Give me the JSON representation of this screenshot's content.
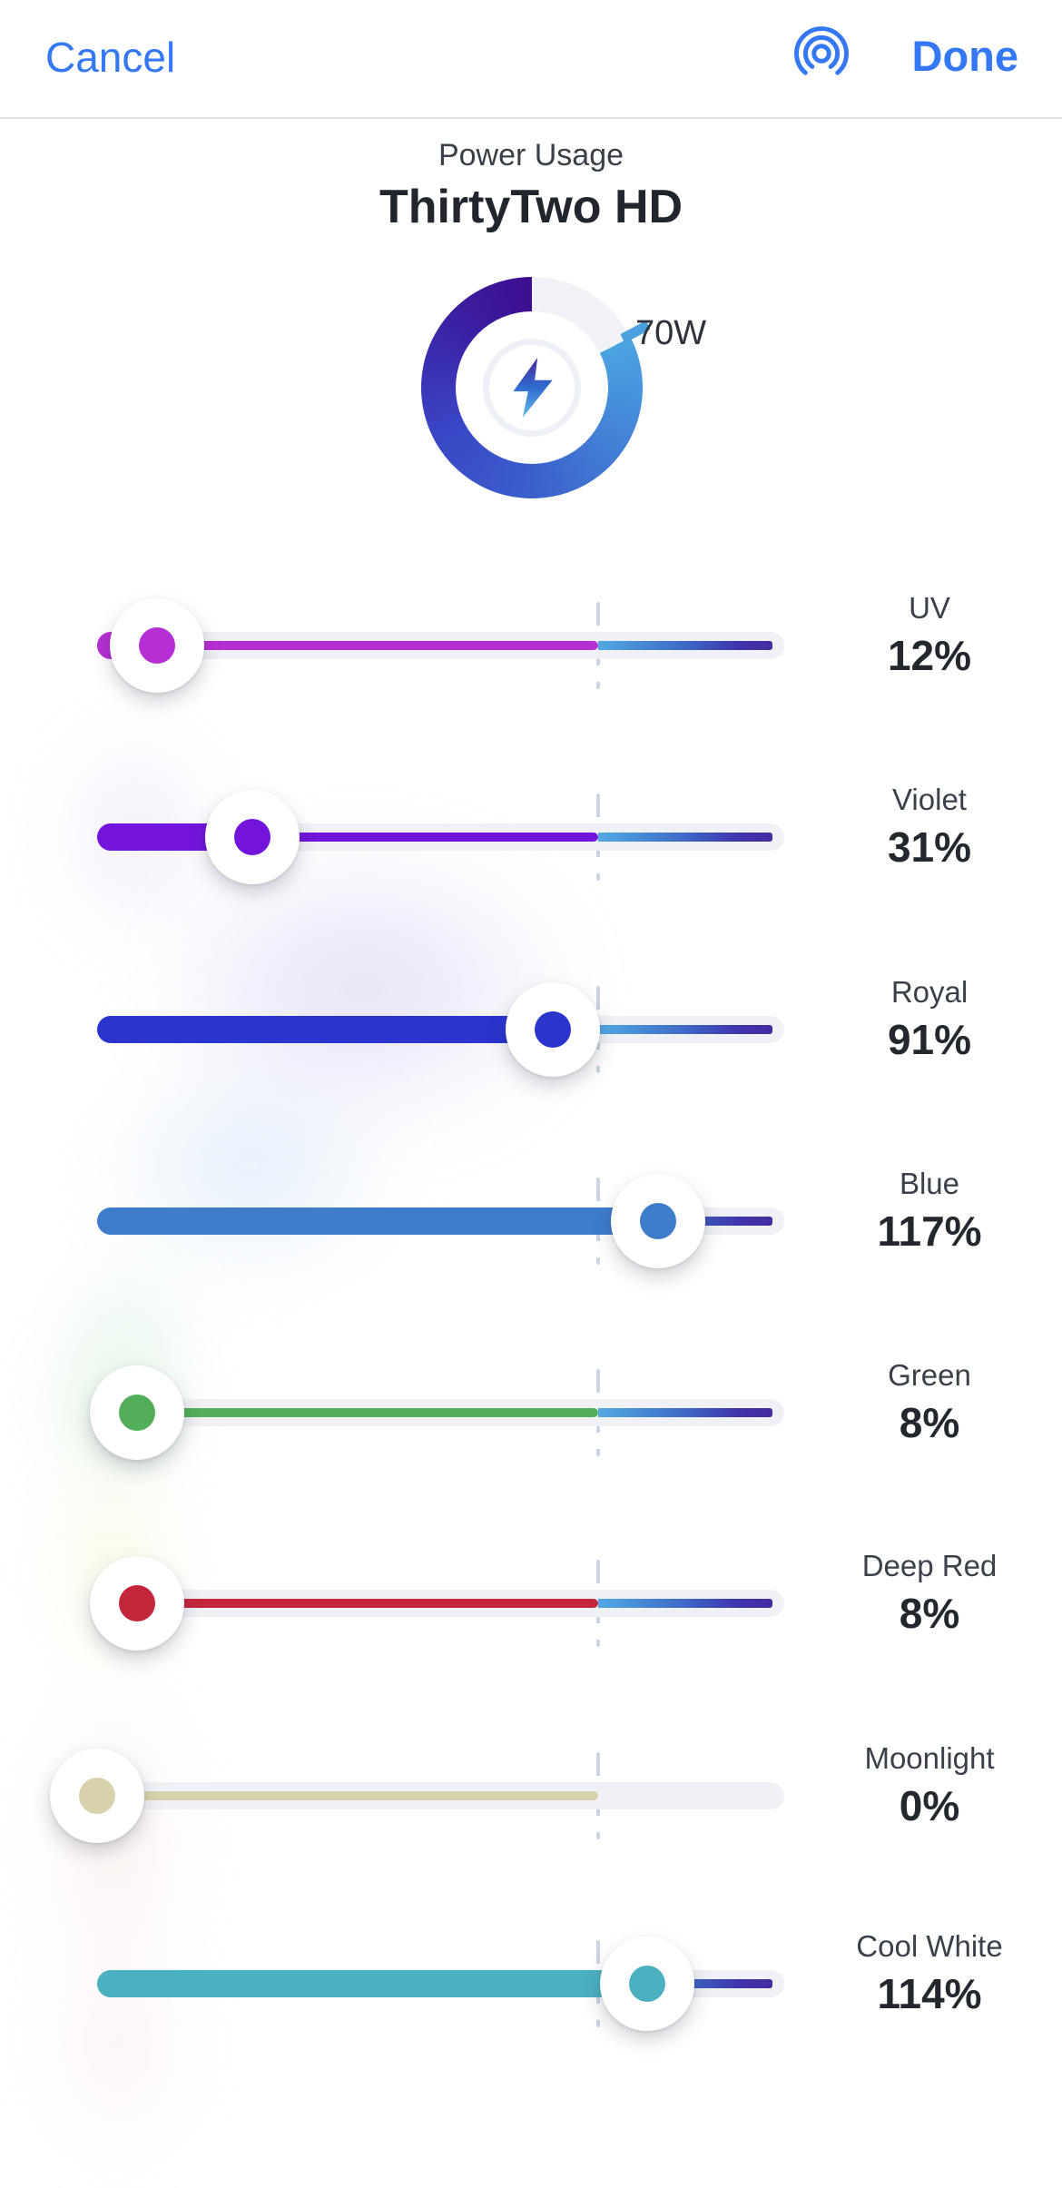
{
  "header": {
    "cancel_label": "Cancel",
    "done_label": "Done",
    "icon": "ripple-icon",
    "accent_color": "#3478F6"
  },
  "power": {
    "section_label": "Power Usage",
    "device_name": "ThirtyTwo HD",
    "wattage_label": "70W",
    "fill_percent": 82.5,
    "ring_track_color": "#F0F2F7",
    "ring_gradient": [
      "#4BA4E2",
      "#4484D7",
      "#3A5FCB",
      "#3945C5",
      "#3B1FA2",
      "#3D0D90"
    ]
  },
  "sliders": {
    "hundred_mark_color": "#CBD5E3",
    "track_color": "#EFF1F6",
    "overdrive_gradient": [
      "#52A9E2",
      "#3E6CC7",
      "#3F35AC",
      "#452B9E"
    ],
    "max_percent": 150,
    "channels": [
      {
        "name": "UV",
        "value": 12,
        "percent_label": "12%",
        "color": "#B62FD4",
        "overdrive": true
      },
      {
        "name": "Violet",
        "value": 31,
        "percent_label": "31%",
        "color": "#7314DC",
        "overdrive": true
      },
      {
        "name": "Royal",
        "value": 91,
        "percent_label": "91%",
        "color": "#2B35CE",
        "overdrive": true
      },
      {
        "name": "Blue",
        "value": 117,
        "percent_label": "117%",
        "color": "#3D7CCB",
        "overdrive": true
      },
      {
        "name": "Green",
        "value": 8,
        "percent_label": "8%",
        "color": "#52AE58",
        "overdrive": true
      },
      {
        "name": "Deep Red",
        "value": 8,
        "percent_label": "8%",
        "color": "#C4273C",
        "overdrive": true
      },
      {
        "name": "Moonlight",
        "value": 0,
        "percent_label": "0%",
        "color": "#D8D2AC",
        "overdrive": false
      },
      {
        "name": "Cool White",
        "value": 114,
        "percent_label": "114%",
        "color": "#4BB0C0",
        "overdrive": true
      }
    ]
  }
}
